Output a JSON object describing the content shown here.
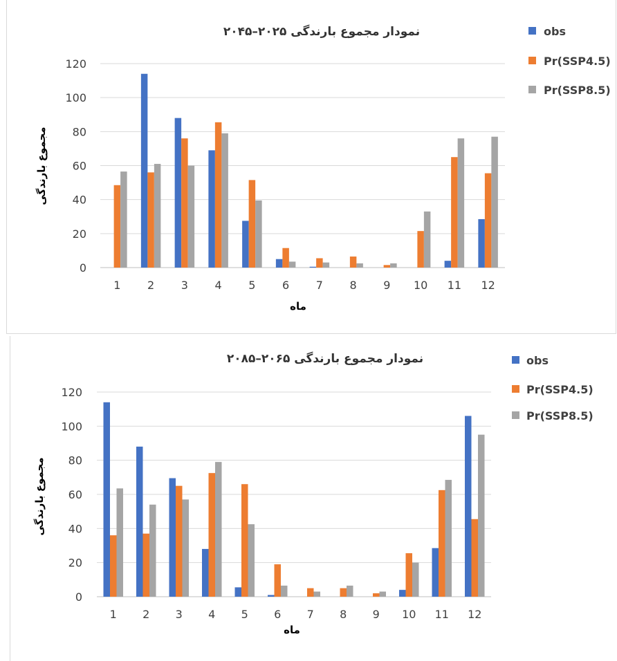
{
  "colors": {
    "obs": "#4472C4",
    "ssp45": "#ED7D31",
    "ssp85": "#A5A5A5"
  },
  "chart_data": [
    {
      "type": "bar",
      "title": "نمودار مجموع بارندگی ۲۰۲۵–۲۰۴۵",
      "xlabel": "ماه",
      "ylabel": "مجموع بارندگی",
      "categories": [
        "1",
        "2",
        "3",
        "4",
        "5",
        "6",
        "7",
        "8",
        "9",
        "10",
        "11",
        "12"
      ],
      "ylim": [
        0,
        120
      ],
      "yticks": [
        "0",
        "20",
        "40",
        "60",
        "80",
        "100",
        "120"
      ],
      "grid": true,
      "legend_position": "right",
      "series": [
        {
          "name": "obs",
          "values": [
            0,
            114,
            88,
            69,
            27.5,
            5,
            0.5,
            0,
            0,
            0,
            4,
            28.5
          ]
        },
        {
          "name": "Pr(SSP4.5)",
          "values": [
            48.5,
            56,
            76,
            85.5,
            51.5,
            11.5,
            5.5,
            6.5,
            1.5,
            21.5,
            65,
            55.5
          ]
        },
        {
          "name": "Pr(SSP8.5)",
          "values": [
            56.5,
            61,
            60,
            79,
            39.5,
            3.5,
            3,
            2.5,
            2.5,
            33,
            76,
            77
          ]
        }
      ]
    },
    {
      "type": "bar",
      "title": "نمودار مجموع بارندگی ۲۰۶۵–۲۰۸۵",
      "xlabel": "ماه",
      "ylabel": "مجموع بارندگی",
      "categories": [
        "1",
        "2",
        "3",
        "4",
        "5",
        "6",
        "7",
        "8",
        "9",
        "10",
        "11",
        "12"
      ],
      "ylim": [
        0,
        120
      ],
      "yticks": [
        "0",
        "20",
        "40",
        "60",
        "80",
        "100",
        "120"
      ],
      "grid": true,
      "legend_position": "right",
      "series": [
        {
          "name": "obs",
          "values": [
            114,
            88,
            69.5,
            28,
            5.5,
            1,
            0,
            0,
            0,
            4,
            28.5,
            106
          ]
        },
        {
          "name": "Pr(SSP4.5)",
          "values": [
            36,
            37,
            65,
            72.5,
            66,
            19,
            5,
            5,
            2,
            25.5,
            62.5,
            45.5
          ]
        },
        {
          "name": "Pr(SSP8.5)",
          "values": [
            63.5,
            54,
            57,
            79,
            42.5,
            6.5,
            3,
            6.5,
            3,
            20,
            68.5,
            95
          ]
        }
      ]
    }
  ]
}
